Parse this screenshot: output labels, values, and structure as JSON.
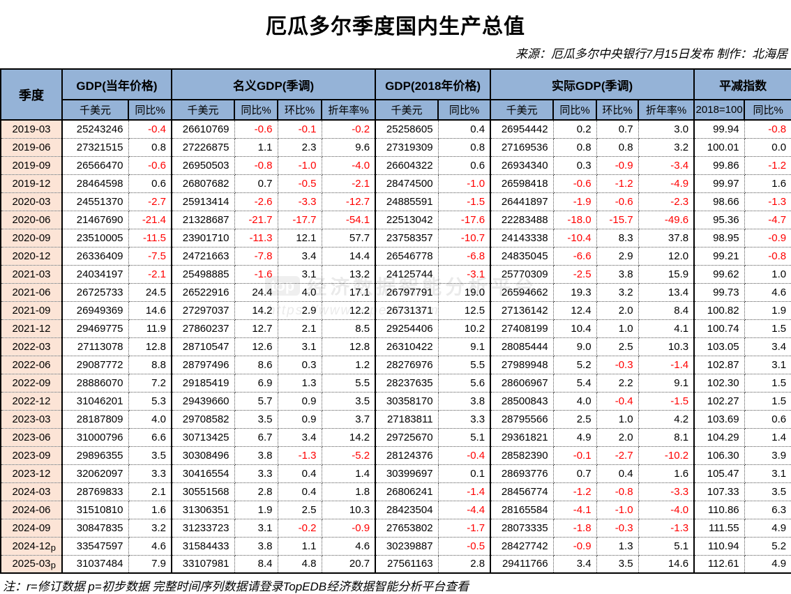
{
  "title": "厄瓜多尔季度国内生产总值",
  "source": "来源：厄瓜多尔中央银行7月15日发布 制作：北海居",
  "note": "注：r=修订数据 p=初步数据 完整时间序列数据请登录TopEDB经济数据智能分析平台查看",
  "watermark": {
    "logo": "top",
    "line1": "经济数据智能分析平台",
    "line2": "https://www.topedb.com"
  },
  "colors": {
    "header_bg": "#95B3D7",
    "quarter_bg": "#FCE4D6",
    "negative": "#FF0000",
    "border": "#000000"
  },
  "table": {
    "quarter_header": "季度",
    "groups": [
      {
        "label": "GDP(当年价格)",
        "span": 2
      },
      {
        "label": "名义GDP(季调)",
        "span": 4
      },
      {
        "label": "GDP(2018年价格)",
        "span": 2
      },
      {
        "label": "实际GDP(季调)",
        "span": 4
      },
      {
        "label": "平减指数",
        "span": 2
      }
    ],
    "subheaders": [
      "千美元",
      "同比%",
      "千美元",
      "同比%",
      "环比%",
      "折年率%",
      "千美元",
      "同比%",
      "千美元",
      "同比%",
      "环比%",
      "折年率%",
      "2018=100",
      "同比%"
    ],
    "group_start_indices": [
      0,
      2,
      6,
      8,
      12
    ],
    "rows": [
      {
        "quarter": "2019-03",
        "flag": "",
        "values": [
          "25243246",
          "-0.4",
          "26610769",
          "-0.6",
          "-0.1",
          "-0.2",
          "25258605",
          "0.4",
          "26954442",
          "0.2",
          "0.7",
          "3.0",
          "99.94",
          "-0.8"
        ]
      },
      {
        "quarter": "2019-06",
        "flag": "",
        "values": [
          "27321515",
          "0.8",
          "27226875",
          "1.1",
          "2.3",
          "9.6",
          "27319309",
          "0.8",
          "27169536",
          "0.8",
          "0.8",
          "3.2",
          "100.01",
          "0.0"
        ]
      },
      {
        "quarter": "2019-09",
        "flag": "",
        "values": [
          "26566470",
          "-0.6",
          "26950503",
          "-0.8",
          "-1.0",
          "-4.0",
          "26604322",
          "0.6",
          "26934340",
          "0.3",
          "-0.9",
          "-3.4",
          "99.86",
          "-1.2"
        ]
      },
      {
        "quarter": "2019-12",
        "flag": "",
        "values": [
          "28464598",
          "0.6",
          "26807682",
          "0.7",
          "-0.5",
          "-2.1",
          "28474500",
          "-1.0",
          "26598418",
          "-0.6",
          "-1.2",
          "-4.9",
          "99.97",
          "1.6"
        ]
      },
      {
        "quarter": "2020-03",
        "flag": "",
        "values": [
          "24551370",
          "-2.7",
          "25913414",
          "-2.6",
          "-3.3",
          "-12.7",
          "24885591",
          "-1.5",
          "26441897",
          "-1.9",
          "-0.6",
          "-2.3",
          "98.66",
          "-1.3"
        ]
      },
      {
        "quarter": "2020-06",
        "flag": "",
        "values": [
          "21467690",
          "-21.4",
          "21328687",
          "-21.7",
          "-17.7",
          "-54.1",
          "22513042",
          "-17.6",
          "22283488",
          "-18.0",
          "-15.7",
          "-49.6",
          "95.36",
          "-4.7"
        ]
      },
      {
        "quarter": "2020-09",
        "flag": "",
        "values": [
          "23510005",
          "-11.5",
          "23901710",
          "-11.3",
          "12.1",
          "57.7",
          "23758357",
          "-10.7",
          "24143338",
          "-10.4",
          "8.3",
          "37.8",
          "98.95",
          "-0.9"
        ]
      },
      {
        "quarter": "2020-12",
        "flag": "",
        "values": [
          "26336409",
          "-7.5",
          "24721663",
          "-7.8",
          "3.4",
          "14.4",
          "26546778",
          "-6.8",
          "24835045",
          "-6.6",
          "2.9",
          "12.0",
          "99.21",
          "-0.8"
        ]
      },
      {
        "quarter": "2021-03",
        "flag": "",
        "values": [
          "24034197",
          "-2.1",
          "25498885",
          "-1.6",
          "3.1",
          "13.2",
          "24125744",
          "-3.1",
          "25770309",
          "-2.5",
          "3.8",
          "15.9",
          "99.62",
          "1.0"
        ]
      },
      {
        "quarter": "2021-06",
        "flag": "",
        "values": [
          "26725733",
          "24.5",
          "26522916",
          "24.4",
          "4.0",
          "17.1",
          "26797791",
          "19.0",
          "26594662",
          "19.3",
          "3.2",
          "13.4",
          "99.73",
          "4.6"
        ]
      },
      {
        "quarter": "2021-09",
        "flag": "",
        "values": [
          "26949369",
          "14.6",
          "27297037",
          "14.2",
          "2.9",
          "12.2",
          "26731371",
          "12.5",
          "27136142",
          "12.4",
          "2.0",
          "8.4",
          "100.82",
          "1.9"
        ]
      },
      {
        "quarter": "2021-12",
        "flag": "",
        "values": [
          "29469775",
          "11.9",
          "27860237",
          "12.7",
          "2.1",
          "8.5",
          "29254406",
          "10.2",
          "27408199",
          "10.4",
          "1.0",
          "4.1",
          "100.74",
          "1.5"
        ]
      },
      {
        "quarter": "2022-03",
        "flag": "",
        "values": [
          "27113078",
          "12.8",
          "28710547",
          "12.6",
          "3.1",
          "12.8",
          "26310422",
          "9.1",
          "28085444",
          "9.0",
          "2.5",
          "10.3",
          "103.05",
          "3.4"
        ]
      },
      {
        "quarter": "2022-06",
        "flag": "",
        "values": [
          "29087772",
          "8.8",
          "28797496",
          "8.6",
          "0.3",
          "1.2",
          "28276976",
          "5.5",
          "27989948",
          "5.2",
          "-0.3",
          "-1.4",
          "102.87",
          "3.1"
        ]
      },
      {
        "quarter": "2022-09",
        "flag": "",
        "values": [
          "28886070",
          "7.2",
          "29185419",
          "6.9",
          "1.3",
          "5.5",
          "28237635",
          "5.6",
          "28606967",
          "5.4",
          "2.2",
          "9.1",
          "102.30",
          "1.5"
        ]
      },
      {
        "quarter": "2022-12",
        "flag": "",
        "values": [
          "31046201",
          "5.3",
          "29439660",
          "5.7",
          "0.9",
          "3.5",
          "30358170",
          "3.8",
          "28500843",
          "4.0",
          "-0.4",
          "-1.5",
          "102.27",
          "1.5"
        ]
      },
      {
        "quarter": "2023-03",
        "flag": "",
        "values": [
          "28187809",
          "4.0",
          "29708582",
          "3.5",
          "0.9",
          "3.7",
          "27183811",
          "3.3",
          "28795566",
          "2.5",
          "1.0",
          "4.2",
          "103.69",
          "0.6"
        ]
      },
      {
        "quarter": "2023-06",
        "flag": "",
        "values": [
          "31000796",
          "6.6",
          "30713425",
          "6.7",
          "3.4",
          "14.2",
          "29725670",
          "5.1",
          "29361821",
          "4.9",
          "2.0",
          "8.1",
          "104.29",
          "1.4"
        ]
      },
      {
        "quarter": "2023-09",
        "flag": "",
        "values": [
          "29896355",
          "3.5",
          "30308496",
          "3.8",
          "-1.3",
          "-5.2",
          "28124376",
          "-0.4",
          "28582390",
          "-0.1",
          "-2.7",
          "-10.2",
          "106.30",
          "3.9"
        ]
      },
      {
        "quarter": "2023-12",
        "flag": "",
        "values": [
          "32062097",
          "3.3",
          "30416554",
          "3.3",
          "0.4",
          "1.4",
          "30399697",
          "0.1",
          "28693776",
          "0.7",
          "0.4",
          "1.6",
          "105.47",
          "3.1"
        ]
      },
      {
        "quarter": "2024-03",
        "flag": "",
        "values": [
          "28769833",
          "2.1",
          "30551568",
          "2.8",
          "0.4",
          "1.8",
          "26806241",
          "-1.4",
          "28456774",
          "-1.2",
          "-0.8",
          "-3.3",
          "107.33",
          "3.5"
        ]
      },
      {
        "quarter": "2024-06",
        "flag": "",
        "values": [
          "31510810",
          "1.6",
          "31306351",
          "1.9",
          "2.5",
          "10.3",
          "28423504",
          "-4.4",
          "28165584",
          "-4.1",
          "-1.0",
          "-4.0",
          "110.86",
          "6.3"
        ]
      },
      {
        "quarter": "2024-09",
        "flag": "",
        "values": [
          "30847835",
          "3.2",
          "31233723",
          "3.1",
          "-0.2",
          "-0.9",
          "27653802",
          "-1.7",
          "28073335",
          "-1.8",
          "-0.3",
          "-1.3",
          "111.55",
          "4.9"
        ]
      },
      {
        "quarter": "2024-12",
        "flag": "p",
        "values": [
          "33547597",
          "4.6",
          "31584433",
          "3.8",
          "1.1",
          "4.6",
          "30239887",
          "-0.5",
          "28427742",
          "-0.9",
          "1.3",
          "5.1",
          "110.94",
          "5.2"
        ]
      },
      {
        "quarter": "2025-03",
        "flag": "p",
        "values": [
          "31037484",
          "7.9",
          "33107981",
          "8.4",
          "4.8",
          "20.7",
          "27561163",
          "2.8",
          "29411766",
          "3.4",
          "3.5",
          "14.6",
          "112.61",
          "4.9"
        ]
      }
    ]
  }
}
